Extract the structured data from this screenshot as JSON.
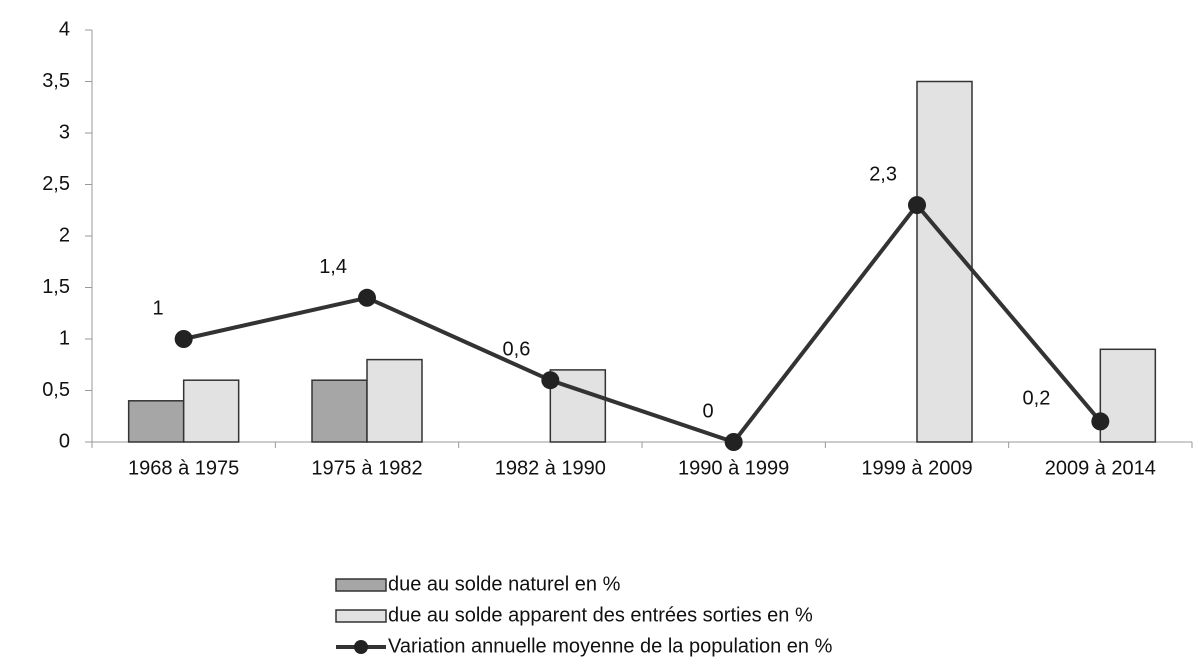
{
  "chart_data": {
    "type": "bar-line",
    "categories": [
      "1968 à 1975",
      "1975 à 1982",
      "1982 à 1990",
      "1990 à 1999",
      "1999 à 2009",
      "2009 à 2014"
    ],
    "series": [
      {
        "name": "due au solde naturel en %",
        "type": "bar",
        "color": "#a6a6a6",
        "values": [
          0.4,
          0.6,
          null,
          null,
          null,
          null
        ]
      },
      {
        "name": "due au solde apparent des entrées sorties en %",
        "type": "bar",
        "color": "#e2e2e2",
        "values": [
          0.6,
          0.8,
          0.7,
          null,
          3.5,
          0.9
        ]
      },
      {
        "name": "Variation annuelle moyenne de la population en %",
        "type": "line",
        "color": "#333333",
        "values": [
          1,
          1.4,
          0.6,
          0,
          2.3,
          0.2
        ],
        "value_labels": [
          "1",
          "1,4",
          "0,6",
          "0",
          "2,3",
          "0,2"
        ]
      }
    ],
    "ylim": [
      0,
      4
    ],
    "yticks": [
      0,
      {
        "value": 0.5,
        "label": "0,5"
      },
      1,
      {
        "value": 1.5,
        "label": "1,5"
      },
      2,
      {
        "value": 2.5,
        "label": "2,5"
      },
      3,
      {
        "value": 3.5,
        "label": "3,5"
      },
      4
    ],
    "grid": false
  }
}
